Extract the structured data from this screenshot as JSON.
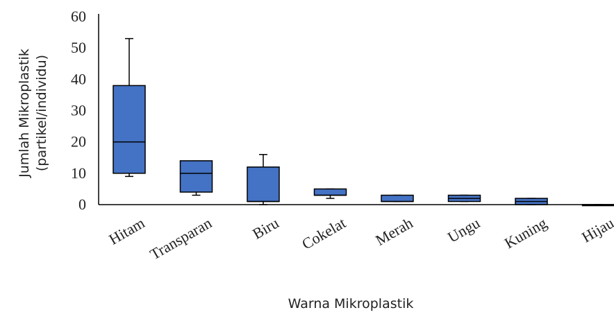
{
  "chart_data": {
    "type": "boxplot",
    "xlabel": "Warna Mikroplastik",
    "ylabel_line1": "Jumlah Mikroplastik",
    "ylabel_line2": "(partikel/individu)",
    "ylim": [
      0,
      60
    ],
    "yticks": [
      "0",
      "10",
      "20",
      "30",
      "40",
      "50",
      "60"
    ],
    "box_color": "#4472C4",
    "grid": false,
    "categories": [
      "Hitam",
      "Transparan",
      "Biru",
      "Cokelat",
      "Merah",
      "Ungu",
      "Kuning",
      "Hijau"
    ],
    "series": [
      {
        "category": "Hitam",
        "min": 9,
        "q1": 10,
        "median": 20,
        "q3": 38,
        "max": 53
      },
      {
        "category": "Transparan",
        "min": 3,
        "q1": 4,
        "median": 10,
        "q3": 14,
        "max": 14
      },
      {
        "category": "Biru",
        "min": 0,
        "q1": 1,
        "median": 1,
        "q3": 12,
        "max": 16
      },
      {
        "category": "Cokelat",
        "min": 2,
        "q1": 3,
        "median": 3,
        "q3": 5,
        "max": 5
      },
      {
        "category": "Merah",
        "min": 1,
        "q1": 1,
        "median": 1,
        "q3": 3,
        "max": 3
      },
      {
        "category": "Ungu",
        "min": 1,
        "q1": 1,
        "median": 2,
        "q3": 3,
        "max": 3
      },
      {
        "category": "Kuning",
        "min": 0,
        "q1": 0,
        "median": 1,
        "q3": 2,
        "max": 2
      },
      {
        "category": "Hijau",
        "min": 0,
        "q1": 0,
        "median": 0,
        "q3": 0,
        "max": 0
      }
    ]
  }
}
